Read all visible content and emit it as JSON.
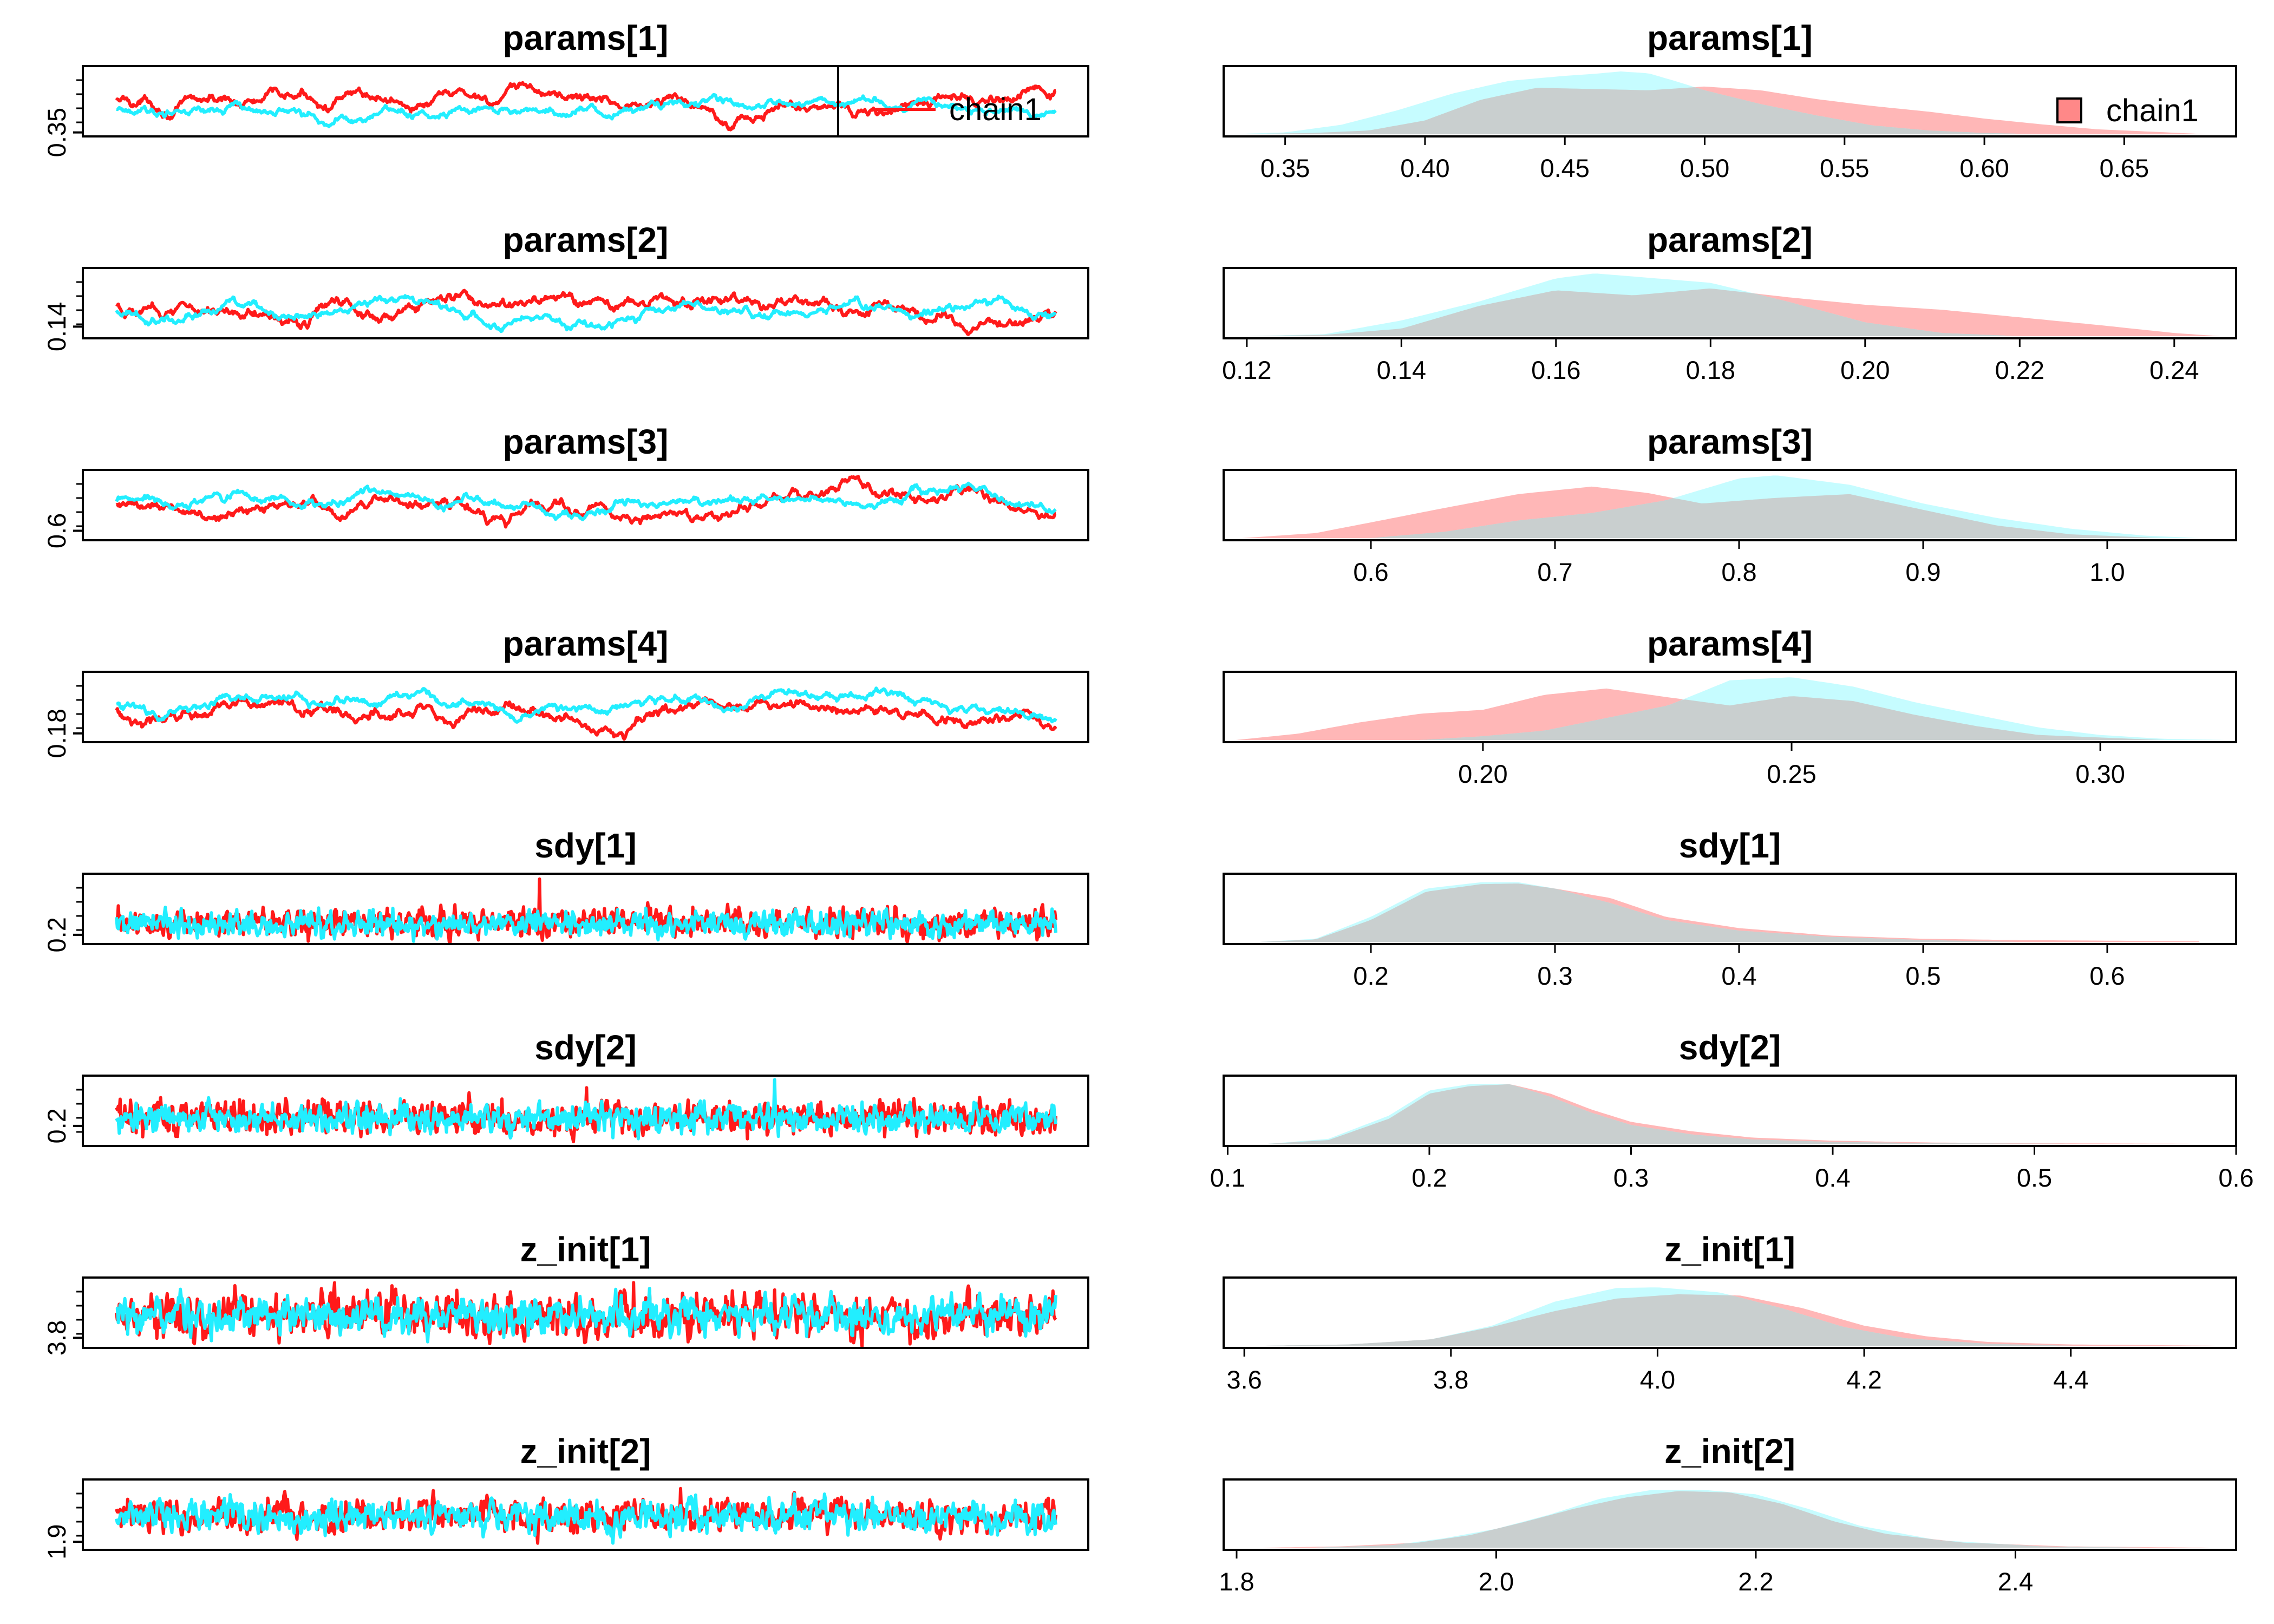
{
  "colors": {
    "chain1": "#ff1a1a",
    "chain2": "#22eeff",
    "overlap": "#c9cfcf",
    "frame": "#000000"
  },
  "legend": {
    "label": "chain1",
    "placement": "top-right"
  },
  "chart_data": [
    {
      "type": "line",
      "title": "params[1]",
      "iterations": 1000,
      "ytick_labels": [
        "0.35"
      ],
      "ylim": [
        0.33,
        0.68
      ],
      "series": [
        {
          "mean": 0.5,
          "sd": 0.045,
          "rho": 0.985
        },
        {
          "mean": 0.465,
          "sd": 0.035,
          "rho": 0.985
        }
      ],
      "legend": "chain1"
    },
    {
      "type": "area",
      "title": "params[1]",
      "x_ticks": [
        0.35,
        0.4,
        0.45,
        0.5,
        0.55,
        0.6,
        0.65
      ],
      "xlim": [
        0.328,
        0.69
      ],
      "series": [
        {
          "x": [
            0.33,
            0.36,
            0.38,
            0.4,
            0.42,
            0.44,
            0.46,
            0.48,
            0.5,
            0.52,
            0.54,
            0.56,
            0.58,
            0.6,
            0.62,
            0.64,
            0.66,
            0.68
          ],
          "y": [
            0.0,
            0.02,
            0.06,
            0.22,
            0.55,
            0.74,
            0.72,
            0.7,
            0.76,
            0.7,
            0.56,
            0.45,
            0.36,
            0.25,
            0.16,
            0.08,
            0.04,
            0.0
          ]
        },
        {
          "x": [
            0.33,
            0.35,
            0.37,
            0.39,
            0.41,
            0.43,
            0.45,
            0.46,
            0.47,
            0.48,
            0.49,
            0.5,
            0.52,
            0.54,
            0.56,
            0.58,
            0.6,
            0.62
          ],
          "y": [
            0.0,
            0.03,
            0.15,
            0.38,
            0.65,
            0.85,
            0.93,
            0.96,
            1.0,
            0.97,
            0.84,
            0.7,
            0.48,
            0.3,
            0.14,
            0.06,
            0.02,
            0.0
          ]
        }
      ],
      "legend": "chain1"
    },
    {
      "type": "line",
      "title": "params[2]",
      "iterations": 1000,
      "ytick_labels": [
        "0.14"
      ],
      "ylim": [
        0.12,
        0.24
      ],
      "series": [
        {
          "mean": 0.178,
          "sd": 0.017,
          "rho": 0.985
        },
        {
          "mean": 0.166,
          "sd": 0.013,
          "rho": 0.985
        }
      ]
    },
    {
      "type": "area",
      "title": "params[2]",
      "x_ticks": [
        0.12,
        0.14,
        0.16,
        0.18,
        0.2,
        0.22,
        0.24
      ],
      "xlim": [
        0.117,
        0.248
      ],
      "series": [
        {
          "x": [
            0.12,
            0.13,
            0.14,
            0.15,
            0.16,
            0.17,
            0.18,
            0.19,
            0.2,
            0.21,
            0.22,
            0.23,
            0.24,
            0.246
          ],
          "y": [
            0.0,
            0.02,
            0.12,
            0.48,
            0.73,
            0.65,
            0.76,
            0.62,
            0.5,
            0.42,
            0.3,
            0.18,
            0.05,
            0.0
          ]
        },
        {
          "x": [
            0.12,
            0.13,
            0.14,
            0.15,
            0.16,
            0.165,
            0.17,
            0.18,
            0.19,
            0.2,
            0.21,
            0.22
          ],
          "y": [
            0.0,
            0.03,
            0.25,
            0.55,
            0.92,
            1.0,
            0.95,
            0.85,
            0.55,
            0.22,
            0.05,
            0.0
          ]
        }
      ]
    },
    {
      "type": "line",
      "title": "params[3]",
      "iterations": 1000,
      "ytick_labels": [
        "0.6"
      ],
      "ylim": [
        0.53,
        1.05
      ],
      "series": [
        {
          "mean": 0.78,
          "sd": 0.07,
          "rho": 0.985
        },
        {
          "mean": 0.82,
          "sd": 0.055,
          "rho": 0.985
        }
      ]
    },
    {
      "type": "area",
      "title": "params[3]",
      "x_ticks": [
        0.6,
        0.7,
        0.8,
        0.9,
        1.0
      ],
      "xlim": [
        0.52,
        1.07
      ],
      "series": [
        {
          "x": [
            0.53,
            0.57,
            0.6,
            0.64,
            0.68,
            0.72,
            0.75,
            0.78,
            0.82,
            0.86,
            0.9,
            0.94,
            0.98,
            1.03
          ],
          "y": [
            0.0,
            0.08,
            0.25,
            0.48,
            0.7,
            0.82,
            0.72,
            0.55,
            0.64,
            0.7,
            0.45,
            0.2,
            0.06,
            0.0
          ]
        },
        {
          "x": [
            0.6,
            0.64,
            0.68,
            0.72,
            0.76,
            0.8,
            0.82,
            0.86,
            0.9,
            0.94,
            0.98,
            1.02,
            1.05
          ],
          "y": [
            0.0,
            0.1,
            0.28,
            0.4,
            0.6,
            0.95,
            1.0,
            0.85,
            0.55,
            0.32,
            0.15,
            0.04,
            0.0
          ]
        }
      ]
    },
    {
      "type": "line",
      "title": "params[4]",
      "iterations": 1000,
      "ytick_labels": [
        "0.18"
      ],
      "ylim": [
        0.16,
        0.32
      ],
      "series": [
        {
          "mean": 0.233,
          "sd": 0.022,
          "rho": 0.985
        },
        {
          "mean": 0.245,
          "sd": 0.017,
          "rho": 0.985
        }
      ]
    },
    {
      "type": "area",
      "title": "params[4]",
      "x_ticks": [
        0.2,
        0.25,
        0.3
      ],
      "xlim": [
        0.158,
        0.322
      ],
      "series": [
        {
          "x": [
            0.16,
            0.17,
            0.18,
            0.19,
            0.2,
            0.21,
            0.22,
            0.23,
            0.24,
            0.25,
            0.26,
            0.27,
            0.28,
            0.29,
            0.31
          ],
          "y": [
            0.0,
            0.1,
            0.28,
            0.42,
            0.48,
            0.72,
            0.82,
            0.68,
            0.55,
            0.7,
            0.62,
            0.4,
            0.22,
            0.08,
            0.0
          ]
        },
        {
          "x": [
            0.19,
            0.2,
            0.21,
            0.22,
            0.23,
            0.24,
            0.25,
            0.26,
            0.27,
            0.28,
            0.29,
            0.3,
            0.31,
            0.32
          ],
          "y": [
            0.0,
            0.06,
            0.15,
            0.35,
            0.55,
            0.95,
            1.0,
            0.85,
            0.6,
            0.4,
            0.2,
            0.08,
            0.02,
            0.0
          ]
        }
      ]
    },
    {
      "type": "line",
      "title": "sdy[1]",
      "iterations": 1000,
      "ytick_labels": [
        "0.2"
      ],
      "ylim": [
        0.13,
        0.66
      ],
      "series": [
        {
          "mean": 0.29,
          "sd": 0.055,
          "rho": 0.35,
          "spike": 0.62
        },
        {
          "mean": 0.28,
          "sd": 0.045,
          "rho": 0.35
        }
      ]
    },
    {
      "type": "area",
      "title": "sdy[1]",
      "x_ticks": [
        0.2,
        0.3,
        0.4,
        0.5,
        0.6
      ],
      "xlim": [
        0.12,
        0.67
      ],
      "series": [
        {
          "x": [
            0.14,
            0.17,
            0.2,
            0.23,
            0.26,
            0.28,
            0.3,
            0.33,
            0.36,
            0.4,
            0.45,
            0.5,
            0.55,
            0.6,
            0.65
          ],
          "y": [
            0.0,
            0.04,
            0.35,
            0.8,
            0.92,
            0.93,
            0.85,
            0.7,
            0.4,
            0.22,
            0.1,
            0.05,
            0.03,
            0.02,
            0.01
          ]
        },
        {
          "x": [
            0.14,
            0.17,
            0.2,
            0.23,
            0.26,
            0.28,
            0.3,
            0.33,
            0.36,
            0.4,
            0.45,
            0.5,
            0.55
          ],
          "y": [
            0.0,
            0.05,
            0.4,
            0.85,
            0.95,
            0.95,
            0.85,
            0.62,
            0.35,
            0.18,
            0.08,
            0.03,
            0.0
          ]
        }
      ]
    },
    {
      "type": "line",
      "title": "sdy[2]",
      "iterations": 1000,
      "ytick_labels": [
        "0.2"
      ],
      "ylim": [
        0.1,
        0.45
      ],
      "series": [
        {
          "mean": 0.24,
          "sd": 0.04,
          "rho": 0.35,
          "spike": 0.39
        },
        {
          "mean": 0.235,
          "sd": 0.035,
          "rho": 0.35,
          "spike": 0.43
        }
      ]
    },
    {
      "type": "area",
      "title": "sdy[2]",
      "x_ticks": [
        0.1,
        0.2,
        0.3,
        0.4,
        0.5,
        0.6
      ],
      "xlim": [
        0.098,
        0.6
      ],
      "series": [
        {
          "x": [
            0.12,
            0.15,
            0.18,
            0.2,
            0.22,
            0.24,
            0.26,
            0.28,
            0.3,
            0.33,
            0.36,
            0.4,
            0.45,
            0.5,
            0.58
          ],
          "y": [
            0.0,
            0.06,
            0.4,
            0.8,
            0.92,
            0.95,
            0.8,
            0.55,
            0.35,
            0.2,
            0.1,
            0.05,
            0.02,
            0.01,
            0.0
          ]
        },
        {
          "x": [
            0.12,
            0.15,
            0.18,
            0.2,
            0.22,
            0.24,
            0.26,
            0.28,
            0.3,
            0.33,
            0.36,
            0.4,
            0.45,
            0.52
          ],
          "y": [
            0.0,
            0.08,
            0.45,
            0.85,
            0.95,
            0.95,
            0.75,
            0.5,
            0.3,
            0.15,
            0.07,
            0.03,
            0.01,
            0.0
          ]
        }
      ]
    },
    {
      "type": "line",
      "title": "z_init[1]",
      "iterations": 1000,
      "ytick_labels": [
        "3.8"
      ],
      "ylim": [
        3.7,
        4.4
      ],
      "series": [
        {
          "mean": 4.03,
          "sd": 0.11,
          "rho": 0.45,
          "spike": 4.35
        },
        {
          "mean": 4.02,
          "sd": 0.09,
          "rho": 0.45
        }
      ]
    },
    {
      "type": "area",
      "title": "z_init[1]",
      "x_ticks": [
        3.6,
        3.8,
        4.0,
        4.2,
        4.4
      ],
      "xlim": [
        3.58,
        4.56
      ],
      "series": [
        {
          "x": [
            3.62,
            3.7,
            3.78,
            3.84,
            3.9,
            3.96,
            4.02,
            4.08,
            4.14,
            4.2,
            4.26,
            4.32,
            4.4,
            4.48,
            4.54
          ],
          "y": [
            0.0,
            0.02,
            0.1,
            0.3,
            0.55,
            0.75,
            0.82,
            0.8,
            0.6,
            0.32,
            0.15,
            0.06,
            0.02,
            0.01,
            0.0
          ]
        },
        {
          "x": [
            3.62,
            3.7,
            3.78,
            3.84,
            3.9,
            3.96,
            4.0,
            4.06,
            4.12,
            4.18,
            4.24,
            4.32,
            4.4
          ],
          "y": [
            0.0,
            0.02,
            0.1,
            0.32,
            0.7,
            0.92,
            0.93,
            0.85,
            0.6,
            0.3,
            0.12,
            0.03,
            0.0
          ]
        }
      ]
    },
    {
      "type": "line",
      "title": "z_init[2]",
      "iterations": 1000,
      "ytick_labels": [
        "1.9"
      ],
      "ylim": [
        1.82,
        2.52
      ],
      "series": [
        {
          "mean": 2.15,
          "sd": 0.085,
          "rho": 0.45,
          "spike": 2.43
        },
        {
          "mean": 2.15,
          "sd": 0.08,
          "rho": 0.45
        }
      ]
    },
    {
      "type": "area",
      "title": "z_init[2]",
      "x_ticks": [
        1.8,
        2.0,
        2.2,
        2.4
      ],
      "xlim": [
        1.79,
        2.57
      ],
      "series": [
        {
          "x": [
            1.82,
            1.88,
            1.94,
            1.98,
            2.02,
            2.06,
            2.1,
            2.14,
            2.18,
            2.22,
            2.26,
            2.3,
            2.36,
            2.44,
            2.55
          ],
          "y": [
            0.0,
            0.02,
            0.08,
            0.2,
            0.4,
            0.62,
            0.8,
            0.9,
            0.88,
            0.7,
            0.42,
            0.22,
            0.08,
            0.02,
            0.0
          ]
        },
        {
          "x": [
            1.86,
            1.92,
            1.96,
            2.0,
            2.04,
            2.08,
            2.12,
            2.16,
            2.2,
            2.24,
            2.28,
            2.34,
            2.42,
            2.5
          ],
          "y": [
            0.0,
            0.04,
            0.15,
            0.3,
            0.52,
            0.78,
            0.92,
            0.92,
            0.85,
            0.62,
            0.35,
            0.12,
            0.02,
            0.0
          ]
        }
      ]
    }
  ]
}
